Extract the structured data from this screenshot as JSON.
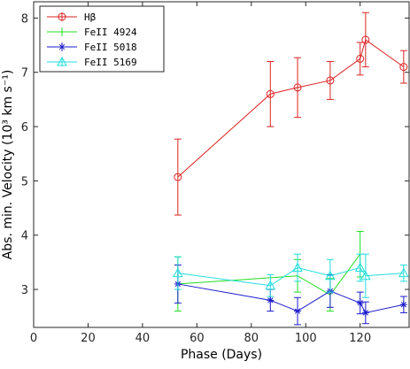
{
  "chart_data": {
    "type": "line",
    "xlabel": "Phase (Days)",
    "ylabel": "Abs. min. Velocity (10³ km s⁻¹)",
    "xlim": [
      0,
      138
    ],
    "ylim": [
      2.3,
      8.3
    ],
    "xticks": [
      0,
      20,
      40,
      60,
      80,
      100,
      120
    ],
    "yticks": [
      3,
      4,
      5,
      6,
      7,
      8
    ],
    "x_tick_labels": [
      "0",
      "20",
      "40",
      "60",
      "80",
      "100",
      "120"
    ],
    "y_tick_labels": [
      "3",
      "4",
      "5",
      "6",
      "7",
      "8"
    ],
    "grid": false,
    "legend_position": "top-left",
    "series": [
      {
        "name": "Hβ",
        "color": "#dd2222",
        "marker": "circle",
        "x": [
          53,
          87,
          97,
          109,
          120,
          122,
          136
        ],
        "y": [
          5.07,
          6.6,
          6.72,
          6.85,
          7.25,
          7.6,
          7.1
        ],
        "err": [
          0.7,
          0.6,
          0.55,
          0.35,
          0.3,
          0.5,
          0.3
        ]
      },
      {
        "name": "FeII 4924",
        "color": "#22dd22",
        "marker": "none",
        "x": [
          53,
          97,
          109,
          120
        ],
        "y": [
          3.1,
          3.25,
          2.9,
          3.65
        ],
        "err": [
          0.5,
          0.3,
          0.3,
          0.42
        ]
      },
      {
        "name": "FeII 5018",
        "color": "#1a1acc",
        "marker": "star",
        "x": [
          53,
          87,
          97,
          109,
          120,
          122,
          136
        ],
        "y": [
          3.1,
          2.8,
          2.6,
          2.97,
          2.75,
          2.57,
          2.72
        ],
        "err": [
          0.35,
          0.2,
          0.25,
          0.3,
          0.2,
          0.2,
          0.15
        ]
      },
      {
        "name": "FeII 5169",
        "color": "#22dddd",
        "marker": "triangle",
        "x": [
          53,
          87,
          97,
          109,
          120,
          122,
          136
        ],
        "y": [
          3.3,
          3.07,
          3.4,
          3.25,
          3.4,
          3.25,
          3.3
        ],
        "err": [
          0.3,
          0.2,
          0.25,
          0.3,
          0.25,
          0.4,
          0.15
        ]
      }
    ]
  }
}
